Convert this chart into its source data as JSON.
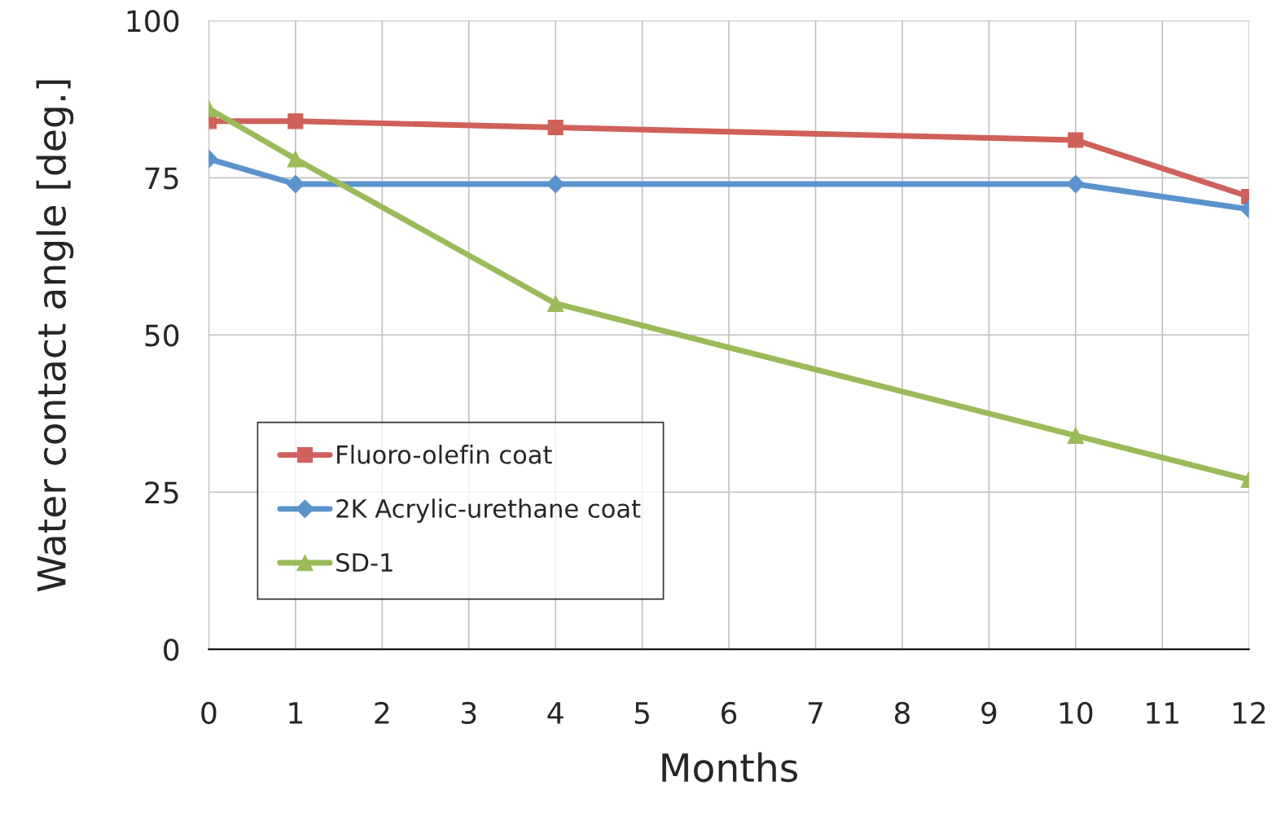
{
  "chart_data": {
    "type": "line",
    "xlabel": "Months",
    "ylabel": "Water contact angle [deg.]",
    "x": [
      0,
      1,
      4,
      10,
      12
    ],
    "series": [
      {
        "name": "Fluoro-olefin coat",
        "color": "#d0605a",
        "marker": "square",
        "values": [
          84,
          84,
          83,
          81,
          72
        ]
      },
      {
        "name": "2K Acrylic-urethane coat",
        "color": "#5b93cc",
        "marker": "diamond",
        "values": [
          78,
          74,
          74,
          74,
          70
        ]
      },
      {
        "name": "SD-1",
        "color": "#9bbb59",
        "marker": "triangle",
        "values": [
          86,
          78,
          55,
          34,
          27
        ]
      }
    ],
    "xlim": [
      0,
      12
    ],
    "xticks": [
      0,
      1,
      2,
      3,
      4,
      5,
      6,
      7,
      8,
      9,
      10,
      11,
      12
    ],
    "ylim": [
      0,
      100
    ],
    "yticks": [
      0,
      25,
      50,
      75,
      100
    ],
    "grid": true,
    "legend": "lower left",
    "line_style": "solid"
  }
}
